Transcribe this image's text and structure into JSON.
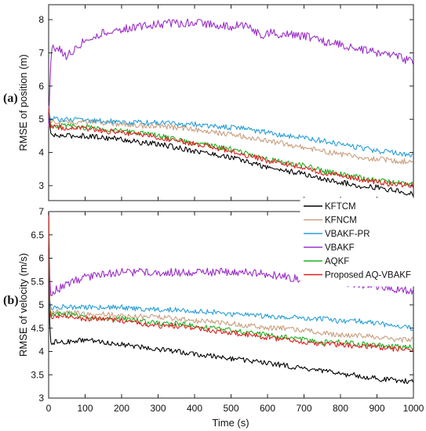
{
  "chart_data": [
    {
      "type": "line",
      "panel_label": "(a)",
      "xlabel": "",
      "ylabel": "RMSE of position (m)",
      "xlim": [
        0,
        1000
      ],
      "ylim": [
        2.55,
        8.45
      ],
      "yticks": [
        3,
        4,
        5,
        6,
        7,
        8
      ],
      "xticks": [
        0,
        100,
        200,
        300,
        400,
        500,
        600,
        700,
        800,
        900,
        1000
      ],
      "grid": false,
      "series": [
        {
          "name": "KFTCM",
          "color": "#000000",
          "x": [
            0,
            5,
            10,
            50,
            100,
            150,
            200,
            250,
            300,
            350,
            400,
            450,
            500,
            550,
            600,
            650,
            700,
            750,
            800,
            850,
            900,
            950,
            1000
          ],
          "values": [
            5.2,
            4.6,
            4.5,
            4.5,
            4.5,
            4.45,
            4.4,
            4.3,
            4.25,
            4.15,
            4.05,
            3.95,
            3.85,
            3.7,
            3.55,
            3.45,
            3.35,
            3.2,
            3.1,
            3.0,
            2.95,
            2.85,
            2.75
          ]
        },
        {
          "name": "KFNCM",
          "color": "#c9a080",
          "x": [
            0,
            5,
            10,
            50,
            100,
            150,
            200,
            250,
            300,
            350,
            400,
            450,
            500,
            550,
            600,
            650,
            700,
            750,
            800,
            850,
            900,
            950,
            1000
          ],
          "values": [
            5.4,
            4.9,
            4.9,
            4.95,
            4.9,
            4.9,
            4.85,
            4.8,
            4.8,
            4.75,
            4.7,
            4.6,
            4.55,
            4.45,
            4.35,
            4.25,
            4.15,
            4.05,
            3.95,
            3.85,
            3.8,
            3.75,
            3.7
          ]
        },
        {
          "name": "VBAKF-PR",
          "color": "#2a9fd6",
          "x": [
            0,
            5,
            10,
            50,
            100,
            150,
            200,
            250,
            300,
            350,
            400,
            450,
            500,
            550,
            600,
            650,
            700,
            750,
            800,
            850,
            900,
            950,
            1000
          ],
          "values": [
            5.3,
            4.95,
            5.0,
            5.0,
            4.95,
            4.95,
            4.9,
            4.9,
            4.9,
            4.85,
            4.85,
            4.8,
            4.75,
            4.7,
            4.6,
            4.5,
            4.45,
            4.35,
            4.25,
            4.15,
            4.05,
            4.0,
            3.9
          ]
        },
        {
          "name": "VBAKF",
          "color": "#9b30c8",
          "x": [
            0,
            5,
            10,
            30,
            50,
            80,
            100,
            150,
            200,
            250,
            300,
            350,
            400,
            450,
            500,
            550,
            580,
            600,
            650,
            700,
            750,
            800,
            850,
            900,
            950,
            1000
          ],
          "values": [
            4.8,
            6.6,
            7.2,
            7.1,
            6.9,
            7.2,
            7.4,
            7.6,
            7.7,
            7.8,
            7.85,
            7.9,
            7.9,
            7.85,
            7.8,
            7.85,
            7.5,
            7.6,
            7.55,
            7.5,
            7.35,
            7.25,
            7.1,
            7.0,
            6.9,
            6.7
          ]
        },
        {
          "name": "AQKF",
          "color": "#22b022",
          "x": [
            0,
            5,
            10,
            50,
            100,
            150,
            200,
            250,
            300,
            350,
            400,
            450,
            500,
            550,
            600,
            650,
            700,
            750,
            800,
            850,
            900,
            950,
            1000
          ],
          "values": [
            5.3,
            4.8,
            4.8,
            4.8,
            4.75,
            4.7,
            4.65,
            4.6,
            4.5,
            4.4,
            4.3,
            4.2,
            4.1,
            3.95,
            3.8,
            3.7,
            3.6,
            3.45,
            3.35,
            3.25,
            3.15,
            3.1,
            3.05
          ]
        },
        {
          "name": "Proposed AQ-VBAKF",
          "color": "#e02020",
          "x": [
            0,
            5,
            10,
            50,
            100,
            150,
            200,
            250,
            300,
            350,
            400,
            450,
            500,
            550,
            600,
            650,
            700,
            750,
            800,
            850,
            900,
            950,
            1000
          ],
          "values": [
            5.3,
            4.75,
            4.75,
            4.75,
            4.7,
            4.65,
            4.6,
            4.55,
            4.45,
            4.35,
            4.25,
            4.15,
            4.05,
            3.9,
            3.75,
            3.65,
            3.55,
            3.4,
            3.3,
            3.2,
            3.1,
            3.05,
            3.0
          ]
        }
      ]
    },
    {
      "type": "line",
      "panel_label": "(b)",
      "xlabel": "Time (s)",
      "ylabel": "RMSE of velocity (m/s)",
      "xlim": [
        0,
        1000
      ],
      "ylim": [
        3,
        7
      ],
      "yticks": [
        3,
        3.5,
        4,
        4.5,
        5,
        5.5,
        6,
        6.5,
        7
      ],
      "xticks": [
        0,
        100,
        200,
        300,
        400,
        500,
        600,
        700,
        800,
        900,
        1000
      ],
      "grid": false,
      "series": [
        {
          "name": "KFTCM",
          "color": "#000000",
          "x": [
            0,
            3,
            6,
            50,
            100,
            150,
            200,
            250,
            300,
            350,
            400,
            450,
            500,
            550,
            600,
            650,
            700,
            750,
            800,
            850,
            900,
            950,
            1000
          ],
          "values": [
            7.0,
            4.6,
            4.2,
            4.2,
            4.25,
            4.2,
            4.15,
            4.1,
            4.05,
            4.0,
            3.95,
            3.9,
            3.85,
            3.8,
            3.75,
            3.7,
            3.62,
            3.58,
            3.52,
            3.48,
            3.42,
            3.38,
            3.35
          ]
        },
        {
          "name": "KFNCM",
          "color": "#c9a080",
          "x": [
            0,
            3,
            6,
            50,
            100,
            150,
            200,
            250,
            300,
            350,
            400,
            450,
            500,
            550,
            600,
            650,
            700,
            750,
            800,
            850,
            900,
            950,
            1000
          ],
          "values": [
            7.0,
            5.0,
            4.85,
            4.85,
            4.8,
            4.8,
            4.75,
            4.75,
            4.75,
            4.7,
            4.65,
            4.65,
            4.6,
            4.55,
            4.5,
            4.5,
            4.45,
            4.4,
            4.35,
            4.35,
            4.3,
            4.25,
            4.25
          ]
        },
        {
          "name": "VBAKF-PR",
          "color": "#2a9fd6",
          "x": [
            0,
            3,
            6,
            50,
            100,
            150,
            200,
            250,
            300,
            350,
            400,
            450,
            500,
            550,
            600,
            650,
            700,
            750,
            800,
            850,
            900,
            950,
            1000
          ],
          "values": [
            7.0,
            5.1,
            4.95,
            4.95,
            4.95,
            4.95,
            4.95,
            4.9,
            4.9,
            4.9,
            4.85,
            4.85,
            4.8,
            4.8,
            4.75,
            4.75,
            4.7,
            4.7,
            4.65,
            4.65,
            4.6,
            4.55,
            4.5
          ]
        },
        {
          "name": "VBAKF",
          "color": "#9b30c8",
          "x": [
            0,
            3,
            6,
            10,
            30,
            50,
            100,
            150,
            200,
            250,
            300,
            350,
            400,
            450,
            500,
            550,
            600,
            650,
            700,
            750,
            800,
            850,
            900,
            950,
            1000
          ],
          "values": [
            7.0,
            5.6,
            5.2,
            5.3,
            5.35,
            5.45,
            5.6,
            5.65,
            5.7,
            5.7,
            5.7,
            5.7,
            5.7,
            5.7,
            5.7,
            5.7,
            5.65,
            5.6,
            5.55,
            5.5,
            5.5,
            5.45,
            5.4,
            5.35,
            5.3
          ]
        },
        {
          "name": "AQKF",
          "color": "#22b022",
          "x": [
            0,
            3,
            6,
            50,
            100,
            150,
            200,
            250,
            300,
            350,
            400,
            450,
            500,
            550,
            600,
            650,
            700,
            750,
            800,
            850,
            900,
            950,
            1000
          ],
          "values": [
            7.0,
            4.95,
            4.8,
            4.8,
            4.75,
            4.7,
            4.7,
            4.65,
            4.6,
            4.6,
            4.55,
            4.5,
            4.45,
            4.4,
            4.35,
            4.3,
            4.25,
            4.2,
            4.2,
            4.15,
            4.15,
            4.1,
            4.1
          ]
        },
        {
          "name": "Proposed AQ-VBAKF",
          "color": "#e02020",
          "x": [
            0,
            3,
            6,
            50,
            100,
            150,
            200,
            250,
            300,
            350,
            400,
            450,
            500,
            550,
            600,
            650,
            700,
            750,
            800,
            850,
            900,
            950,
            1000
          ],
          "values": [
            7.0,
            4.9,
            4.75,
            4.75,
            4.7,
            4.7,
            4.65,
            4.6,
            4.55,
            4.55,
            4.5,
            4.45,
            4.4,
            4.35,
            4.3,
            4.25,
            4.2,
            4.15,
            4.15,
            4.1,
            4.1,
            4.05,
            4.05
          ]
        }
      ]
    }
  ],
  "legend": {
    "placement": "right, between panels",
    "entries": [
      "KFTCM",
      "KFNCM",
      "VBAKF-PR",
      "VBAKF",
      "AQKF",
      "Proposed AQ-VBAKF"
    ]
  }
}
